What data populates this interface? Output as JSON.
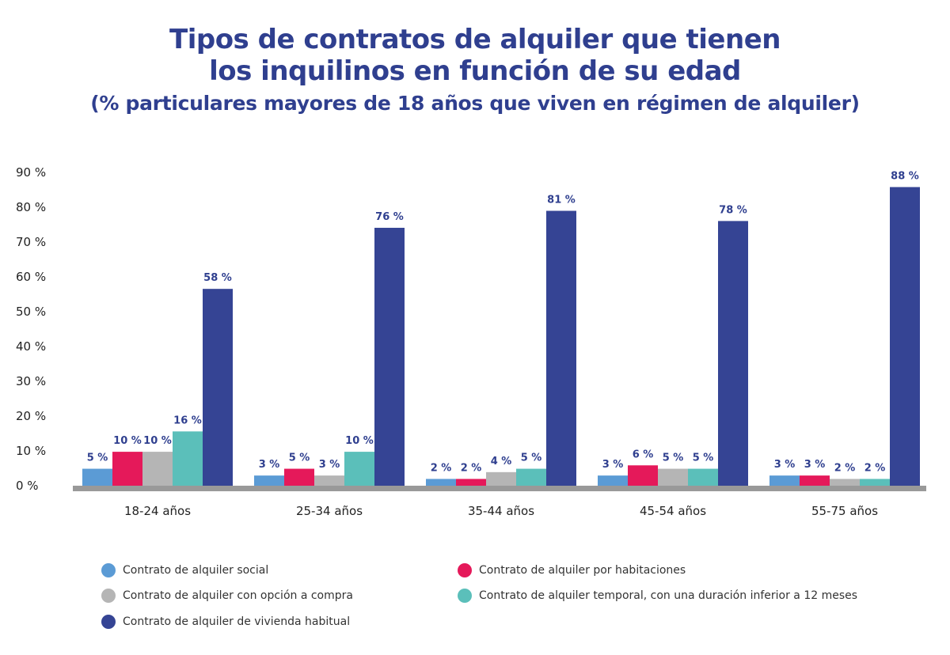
{
  "title_line1": "Tipos de contratos de alquiler que tienen",
  "title_line2": "los inquilinos en función de su edad",
  "subtitle": "(% particulares mayores de 18 años que viven en régimen de alquiler)",
  "chart_data": {
    "type": "bar",
    "title": "Tipos de contratos de alquiler que tienen los inquilinos en función de su edad",
    "subtitle": "(% particulares mayores de 18 años que viven en régimen de alquiler)",
    "categories": [
      "18-24 años",
      "25-34 años",
      "35-44 años",
      "45-54 años",
      "55-75 años"
    ],
    "ylim": [
      0,
      90
    ],
    "yticks": [
      "0 %",
      "10 %",
      "20 %",
      "30 %",
      "40 %",
      "50 %",
      "60 %",
      "70 %",
      "80 %",
      "90 %"
    ],
    "grid": false,
    "legend_position": "bottom",
    "series": [
      {
        "name": "Contrato de alquiler social",
        "color": "#5b9bd5",
        "values": [
          5,
          3,
          2,
          3,
          3
        ]
      },
      {
        "name": "Contrato de alquiler por habitaciones",
        "color": "#e5195a",
        "values": [
          10,
          5,
          2,
          6,
          3
        ]
      },
      {
        "name": "Contrato de alquiler con opción a compra",
        "color": "#b5b5b5",
        "values": [
          10,
          3,
          4,
          5,
          2
        ]
      },
      {
        "name": "Contrato de alquiler temporal, con una duración inferior a 12 meses",
        "color": "#5bbfba",
        "values": [
          16,
          10,
          5,
          5,
          2
        ]
      },
      {
        "name": "Contrato de alquiler de vivienda habitual",
        "color": "#354494",
        "values": [
          58,
          76,
          81,
          78,
          88
        ]
      }
    ]
  }
}
